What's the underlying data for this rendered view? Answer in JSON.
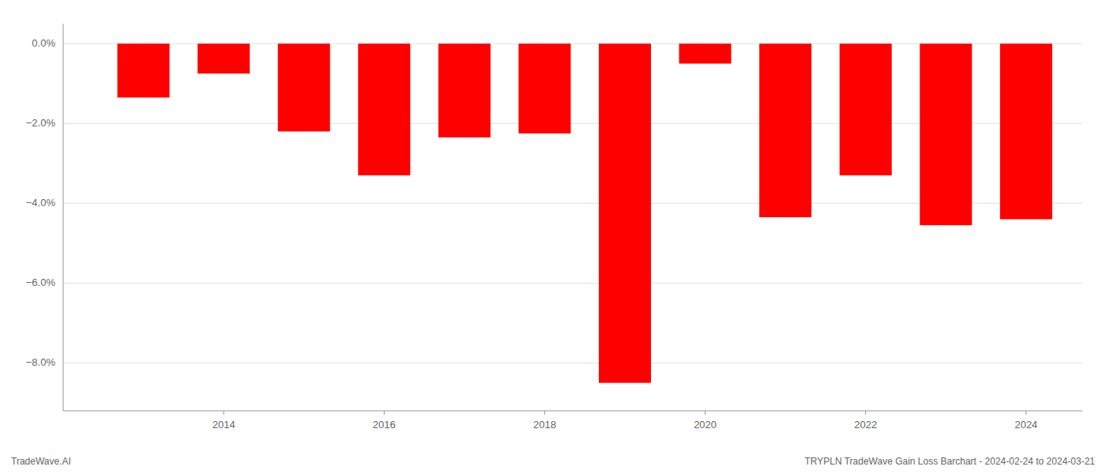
{
  "chart_data": {
    "type": "bar",
    "x": [
      2013,
      2014,
      2015,
      2016,
      2017,
      2018,
      2019,
      2020,
      2021,
      2022,
      2023,
      2024
    ],
    "values": [
      -1.35,
      -0.75,
      -2.2,
      -3.3,
      -2.35,
      -2.25,
      -8.5,
      -0.5,
      -4.35,
      -3.3,
      -4.55,
      -4.4
    ],
    "color": "#ff0000",
    "xlim": [
      2012,
      2024.7
    ],
    "xticks": [
      2014,
      2016,
      2018,
      2020,
      2022,
      2024
    ],
    "ylim": [
      -9.2,
      0.5
    ],
    "yticks": [
      {
        "value": 0.0,
        "label": "0.0%"
      },
      {
        "value": -2.0,
        "label": "−2.0%"
      },
      {
        "value": -4.0,
        "label": "−4.0%"
      },
      {
        "value": -6.0,
        "label": "−6.0%"
      },
      {
        "value": -8.0,
        "label": "−8.0%"
      }
    ],
    "grid": true,
    "annotations": [
      "TradeWave.AI",
      "TRYPLN TradeWave Gain Loss Barchart - 2024-02-24 to 2024-03-21"
    ]
  }
}
